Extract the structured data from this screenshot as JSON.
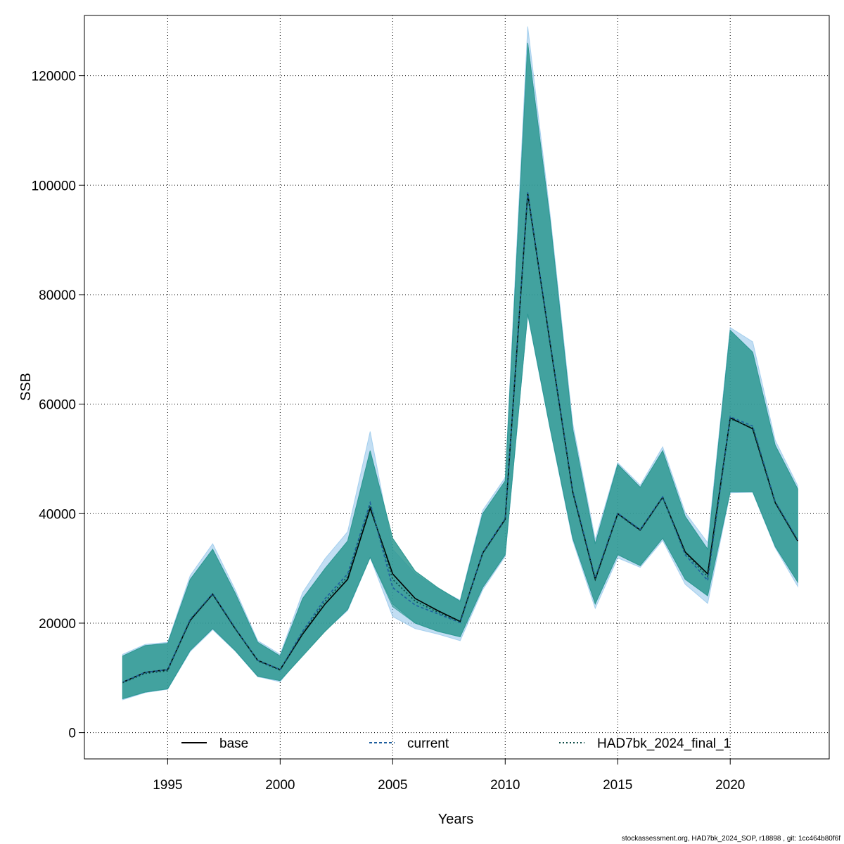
{
  "chart_data": {
    "type": "area",
    "xlabel": "Years",
    "ylabel": "SSB",
    "xlim": [
      1991.3,
      2024.4
    ],
    "ylim": [
      -4800,
      131000
    ],
    "x_ticks": [
      1995,
      2000,
      2005,
      2010,
      2015,
      2020
    ],
    "y_ticks": [
      0,
      20000,
      40000,
      60000,
      80000,
      100000,
      120000
    ],
    "grid": true,
    "legend_position": "bottom",
    "x": [
      1993,
      1994,
      1995,
      1996,
      1997,
      1998,
      1999,
      2000,
      2001,
      2002,
      2003,
      2004,
      2005,
      2006,
      2007,
      2008,
      2009,
      2010,
      2011,
      2012,
      2013,
      2014,
      2015,
      2016,
      2017,
      2018,
      2019,
      2020,
      2021,
      2022,
      2023
    ],
    "series": [
      {
        "name": "base",
        "line_style": "solid",
        "color": "#000000",
        "values": [
          9200,
          11000,
          11500,
          20500,
          25300,
          19000,
          13200,
          11500,
          18000,
          23500,
          28000,
          41000,
          29000,
          24500,
          22300,
          20300,
          32800,
          39000,
          98500,
          71000,
          44000,
          28000,
          40000,
          37000,
          43000,
          33000,
          29000,
          57500,
          55500,
          42000,
          35000
        ],
        "lower": [
          6200,
          7400,
          8000,
          15000,
          19000,
          15000,
          10300,
          9500,
          14000,
          18500,
          22500,
          32000,
          23500,
          20000,
          18500,
          17500,
          26500,
          32500,
          76500,
          55500,
          35500,
          23500,
          32500,
          30500,
          35500,
          28000,
          25000,
          44000,
          44000,
          34000,
          27500
        ],
        "upper": [
          14000,
          15900,
          16300,
          28000,
          33500,
          25500,
          16500,
          14000,
          24500,
          30000,
          35000,
          51500,
          35500,
          29500,
          26500,
          24000,
          40000,
          46000,
          126000,
          93500,
          55500,
          34500,
          49000,
          44800,
          51500,
          39500,
          33500,
          73500,
          69500,
          52500,
          44500
        ],
        "fill": "#2a9690"
      },
      {
        "name": "current",
        "line_style": "dashed",
        "color": "#1f5f9e",
        "values": [
          9200,
          11000,
          11500,
          20700,
          25400,
          19100,
          13200,
          11500,
          18500,
          24500,
          29000,
          42000,
          26500,
          23300,
          21700,
          20100,
          32900,
          39100,
          98700,
          71200,
          44200,
          28300,
          40100,
          37100,
          43100,
          32500,
          27800,
          57700,
          56000,
          42200,
          35200
        ],
        "lower": [
          6000,
          7300,
          7900,
          14800,
          18800,
          14900,
          10200,
          9300,
          14300,
          18600,
          22300,
          32000,
          21200,
          19000,
          18000,
          16800,
          26100,
          32200,
          76300,
          55300,
          35100,
          22700,
          31900,
          30200,
          35100,
          27100,
          23600,
          43800,
          43900,
          33800,
          26700
        ],
        "upper": [
          14300,
          16100,
          16500,
          28700,
          34500,
          26100,
          16800,
          14300,
          25600,
          31800,
          36700,
          55000,
          33500,
          29000,
          26300,
          24200,
          40600,
          46600,
          129000,
          94500,
          56500,
          35300,
          49300,
          45200,
          52200,
          40200,
          34700,
          74000,
          71400,
          53400,
          45100
        ],
        "fill": "#8fc3ea"
      },
      {
        "name": "HAD7bk_2024_final_1",
        "line_style": "dotted",
        "color": "#0b4a45",
        "values": [
          9100,
          10800,
          11300,
          20600,
          25200,
          19000,
          13100,
          11400,
          18200,
          24000,
          28500,
          41500,
          28000,
          24000,
          22000,
          20200,
          32700,
          38900,
          98200,
          70800,
          43800,
          28100,
          39900,
          36900,
          42900,
          32800,
          28500,
          57300,
          55700,
          42100,
          35100
        ],
        "lower": [
          6200,
          7400,
          8000,
          15000,
          19000,
          15000,
          10300,
          9500,
          14000,
          18500,
          22500,
          32000,
          23000,
          20000,
          18500,
          17500,
          26500,
          32500,
          76500,
          55500,
          35500,
          23500,
          32500,
          30500,
          35500,
          28000,
          25000,
          44000,
          44000,
          34000,
          27500
        ],
        "upper": [
          14000,
          15900,
          16300,
          28000,
          33500,
          25500,
          16500,
          14000,
          24500,
          30000,
          35000,
          51500,
          35500,
          29500,
          26500,
          24000,
          40000,
          46000,
          126000,
          93500,
          55500,
          34500,
          49000,
          44800,
          51500,
          39500,
          33500,
          73500,
          69500,
          52500,
          44500
        ],
        "fill": "#2a9690"
      }
    ],
    "footer": "stockassessment.org, HAD7bk_2024_SOP, r18898 , git: 1cc464b80f6f"
  }
}
